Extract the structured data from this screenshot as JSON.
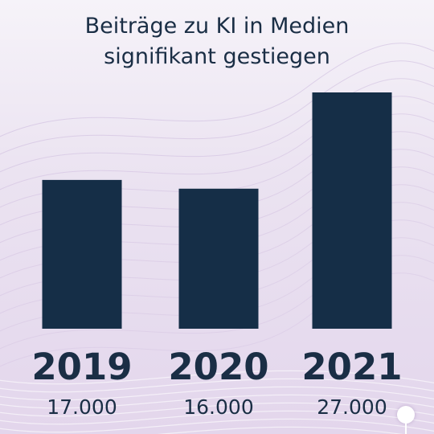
{
  "title_line1": "Beiträge zu KI in Medien",
  "title_line2": "signifikant gestiegen",
  "colors": {
    "bar": "#152e47",
    "text": "#1a2e45",
    "background": "#ece4f2",
    "wave": "#cbb8dc"
  },
  "chart_data": {
    "type": "bar",
    "categories": [
      "2019",
      "2020",
      "2021"
    ],
    "values": [
      17000,
      16000,
      27000
    ],
    "value_labels": [
      "17.000",
      "16.000",
      "27.000"
    ],
    "title": "Beiträge zu KI in Medien signifikant gestiegen",
    "ylim": [
      0,
      27000
    ],
    "grid": false,
    "legend": "none"
  }
}
